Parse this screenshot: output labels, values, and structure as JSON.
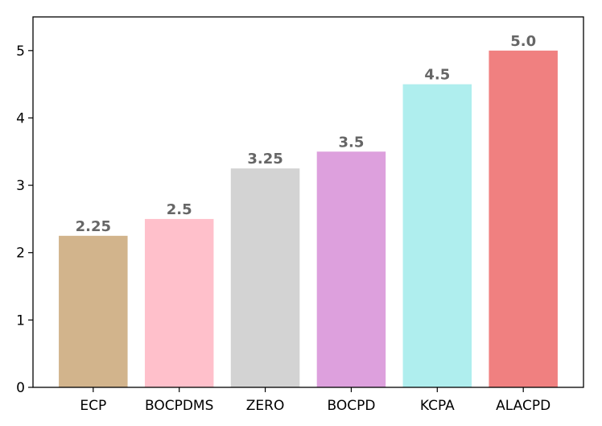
{
  "chart_data": {
    "type": "bar",
    "title": "",
    "xlabel": "",
    "ylabel": "",
    "categories": [
      "ECP",
      "BOCPDMS",
      "ZERO",
      "BOCPD",
      "KCPA",
      "ALACPD"
    ],
    "values": [
      2.25,
      2.5,
      3.25,
      3.5,
      4.5,
      5.0
    ],
    "value_labels": [
      "2.25",
      "2.5",
      "3.25",
      "3.5",
      "4.5",
      "5.0"
    ],
    "colors": [
      "#D2B48C",
      "#FFC0CB",
      "#D3D3D3",
      "#DDA0DD",
      "#AFEEEE",
      "#F08080"
    ],
    "ylim": [
      0,
      5.5
    ],
    "yticks": [
      0,
      1,
      2,
      3,
      4,
      5
    ],
    "ytick_labels": [
      "0",
      "1",
      "2",
      "3",
      "4",
      "5"
    ],
    "grid": false,
    "legend": "none"
  }
}
